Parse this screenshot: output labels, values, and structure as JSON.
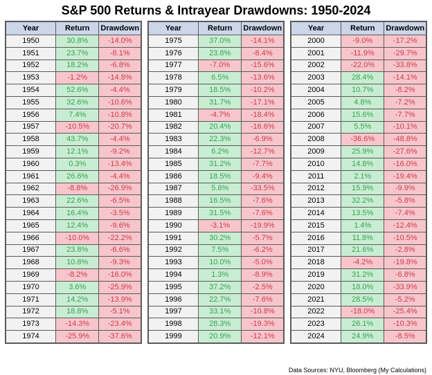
{
  "title": "S&P 500 Returns & Intrayear Drawdowns: 1950-2024",
  "columns": [
    "Year",
    "Return",
    "Drawdown"
  ],
  "footer": "Data Sources: NYU, Bloomberg (My Calculations)",
  "colors": {
    "header_bg": "#ccd5ea",
    "year_cell_bg": "#f2f2f2",
    "positive_bg": "#c9edd2",
    "positive_text": "#35a254",
    "negative_bg": "#f7c6cc",
    "negative_text": "#cc3b4a",
    "border": "#595959"
  },
  "tables": [
    {
      "name": "1950-1974",
      "rows": [
        {
          "year": "1950",
          "return": "30.8%",
          "drawdown": "-14.0%"
        },
        {
          "year": "1951",
          "return": "23.7%",
          "drawdown": "-8.1%"
        },
        {
          "year": "1952",
          "return": "18.2%",
          "drawdown": "-6.8%"
        },
        {
          "year": "1953",
          "return": "-1.2%",
          "drawdown": "-14.8%"
        },
        {
          "year": "1954",
          "return": "52.6%",
          "drawdown": "-4.4%"
        },
        {
          "year": "1955",
          "return": "32.6%",
          "drawdown": "-10.6%"
        },
        {
          "year": "1956",
          "return": "7.4%",
          "drawdown": "-10.8%"
        },
        {
          "year": "1957",
          "return": "-10.5%",
          "drawdown": "-20.7%"
        },
        {
          "year": "1958",
          "return": "43.7%",
          "drawdown": "-4.4%"
        },
        {
          "year": "1959",
          "return": "12.1%",
          "drawdown": "-9.2%"
        },
        {
          "year": "1960",
          "return": "0.3%",
          "drawdown": "-13.4%"
        },
        {
          "year": "1961",
          "return": "26.6%",
          "drawdown": "-4.4%"
        },
        {
          "year": "1962",
          "return": "-8.8%",
          "drawdown": "-26.9%"
        },
        {
          "year": "1963",
          "return": "22.6%",
          "drawdown": "-6.5%"
        },
        {
          "year": "1964",
          "return": "16.4%",
          "drawdown": "-3.5%"
        },
        {
          "year": "1965",
          "return": "12.4%",
          "drawdown": "-9.6%"
        },
        {
          "year": "1966",
          "return": "-10.0%",
          "drawdown": "-22.2%"
        },
        {
          "year": "1967",
          "return": "23.8%",
          "drawdown": "-6.6%"
        },
        {
          "year": "1968",
          "return": "10.8%",
          "drawdown": "-9.3%"
        },
        {
          "year": "1969",
          "return": "-8.2%",
          "drawdown": "-16.0%"
        },
        {
          "year": "1970",
          "return": "3.6%",
          "drawdown": "-25.9%"
        },
        {
          "year": "1971",
          "return": "14.2%",
          "drawdown": "-13.9%"
        },
        {
          "year": "1972",
          "return": "18.8%",
          "drawdown": "-5.1%"
        },
        {
          "year": "1973",
          "return": "-14.3%",
          "drawdown": "-23.4%"
        },
        {
          "year": "1974",
          "return": "-25.9%",
          "drawdown": "-37.6%"
        }
      ]
    },
    {
      "name": "1975-1999",
      "rows": [
        {
          "year": "1975",
          "return": "37.0%",
          "drawdown": "-14.1%"
        },
        {
          "year": "1976",
          "return": "23.8%",
          "drawdown": "-8.4%"
        },
        {
          "year": "1977",
          "return": "-7.0%",
          "drawdown": "-15.6%"
        },
        {
          "year": "1978",
          "return": "6.5%",
          "drawdown": "-13.6%"
        },
        {
          "year": "1979",
          "return": "18.5%",
          "drawdown": "-10.2%"
        },
        {
          "year": "1980",
          "return": "31.7%",
          "drawdown": "-17.1%"
        },
        {
          "year": "1981",
          "return": "-4.7%",
          "drawdown": "-18.4%"
        },
        {
          "year": "1982",
          "return": "20.4%",
          "drawdown": "-16.6%"
        },
        {
          "year": "1983",
          "return": "22.3%",
          "drawdown": "-6.9%"
        },
        {
          "year": "1984",
          "return": "6.2%",
          "drawdown": "-12.7%"
        },
        {
          "year": "1985",
          "return": "31.2%",
          "drawdown": "-7.7%"
        },
        {
          "year": "1986",
          "return": "18.5%",
          "drawdown": "-9.4%"
        },
        {
          "year": "1987",
          "return": "5.8%",
          "drawdown": "-33.5%"
        },
        {
          "year": "1988",
          "return": "16.5%",
          "drawdown": "-7.6%"
        },
        {
          "year": "1989",
          "return": "31.5%",
          "drawdown": "-7.6%"
        },
        {
          "year": "1990",
          "return": "-3.1%",
          "drawdown": "-19.9%"
        },
        {
          "year": "1991",
          "return": "30.2%",
          "drawdown": "-5.7%"
        },
        {
          "year": "1992",
          "return": "7.5%",
          "drawdown": "-6.2%"
        },
        {
          "year": "1993",
          "return": "10.0%",
          "drawdown": "-5.0%"
        },
        {
          "year": "1994",
          "return": "1.3%",
          "drawdown": "-8.9%"
        },
        {
          "year": "1995",
          "return": "37.2%",
          "drawdown": "-2.5%"
        },
        {
          "year": "1996",
          "return": "22.7%",
          "drawdown": "-7.6%"
        },
        {
          "year": "1997",
          "return": "33.1%",
          "drawdown": "-10.8%"
        },
        {
          "year": "1998",
          "return": "28.3%",
          "drawdown": "-19.3%"
        },
        {
          "year": "1999",
          "return": "20.9%",
          "drawdown": "-12.1%"
        }
      ]
    },
    {
      "name": "2000-2024",
      "rows": [
        {
          "year": "2000",
          "return": "-9.0%",
          "drawdown": "-17.2%"
        },
        {
          "year": "2001",
          "return": "-11.9%",
          "drawdown": "-29.7%"
        },
        {
          "year": "2002",
          "return": "-22.0%",
          "drawdown": "-33.8%"
        },
        {
          "year": "2003",
          "return": "28.4%",
          "drawdown": "-14.1%"
        },
        {
          "year": "2004",
          "return": "10.7%",
          "drawdown": "-8.2%"
        },
        {
          "year": "2005",
          "return": "4.8%",
          "drawdown": "-7.2%"
        },
        {
          "year": "2006",
          "return": "15.6%",
          "drawdown": "-7.7%"
        },
        {
          "year": "2007",
          "return": "5.5%",
          "drawdown": "-10.1%"
        },
        {
          "year": "2008",
          "return": "-36.6%",
          "drawdown": "-48.8%"
        },
        {
          "year": "2009",
          "return": "25.9%",
          "drawdown": "-27.6%"
        },
        {
          "year": "2010",
          "return": "14.8%",
          "drawdown": "-16.0%"
        },
        {
          "year": "2011",
          "return": "2.1%",
          "drawdown": "-19.4%"
        },
        {
          "year": "2012",
          "return": "15.9%",
          "drawdown": "-9.9%"
        },
        {
          "year": "2013",
          "return": "32.2%",
          "drawdown": "-5.8%"
        },
        {
          "year": "2014",
          "return": "13.5%",
          "drawdown": "-7.4%"
        },
        {
          "year": "2015",
          "return": "1.4%",
          "drawdown": "-12.4%"
        },
        {
          "year": "2016",
          "return": "11.8%",
          "drawdown": "-10.5%"
        },
        {
          "year": "2017",
          "return": "21.6%",
          "drawdown": "-2.8%"
        },
        {
          "year": "2018",
          "return": "-4.2%",
          "drawdown": "-19.8%"
        },
        {
          "year": "2019",
          "return": "31.2%",
          "drawdown": "-6.8%"
        },
        {
          "year": "2020",
          "return": "18.0%",
          "drawdown": "-33.9%"
        },
        {
          "year": "2021",
          "return": "28.5%",
          "drawdown": "-5.2%"
        },
        {
          "year": "2022",
          "return": "-18.0%",
          "drawdown": "-25.4%"
        },
        {
          "year": "2023",
          "return": "26.1%",
          "drawdown": "-10.3%"
        },
        {
          "year": "2024",
          "return": "24.9%",
          "drawdown": "-8.5%"
        }
      ]
    }
  ],
  "chart_data": {
    "type": "table",
    "title": "S&P 500 Returns & Intrayear Drawdowns: 1950-2024",
    "columns": [
      "Year",
      "Return",
      "Drawdown"
    ],
    "years": [
      1950,
      1951,
      1952,
      1953,
      1954,
      1955,
      1956,
      1957,
      1958,
      1959,
      1960,
      1961,
      1962,
      1963,
      1964,
      1965,
      1966,
      1967,
      1968,
      1969,
      1970,
      1971,
      1972,
      1973,
      1974,
      1975,
      1976,
      1977,
      1978,
      1979,
      1980,
      1981,
      1982,
      1983,
      1984,
      1985,
      1986,
      1987,
      1988,
      1989,
      1990,
      1991,
      1992,
      1993,
      1994,
      1995,
      1996,
      1997,
      1998,
      1999,
      2000,
      2001,
      2002,
      2003,
      2004,
      2005,
      2006,
      2007,
      2008,
      2009,
      2010,
      2011,
      2012,
      2013,
      2014,
      2015,
      2016,
      2017,
      2018,
      2019,
      2020,
      2021,
      2022,
      2023,
      2024
    ],
    "returns_pct": [
      30.8,
      23.7,
      18.2,
      -1.2,
      52.6,
      32.6,
      7.4,
      -10.5,
      43.7,
      12.1,
      0.3,
      26.6,
      -8.8,
      22.6,
      16.4,
      12.4,
      -10.0,
      23.8,
      10.8,
      -8.2,
      3.6,
      14.2,
      18.8,
      -14.3,
      -25.9,
      37.0,
      23.8,
      -7.0,
      6.5,
      18.5,
      31.7,
      -4.7,
      20.4,
      22.3,
      6.2,
      31.2,
      18.5,
      5.8,
      16.5,
      31.5,
      -3.1,
      30.2,
      7.5,
      10.0,
      1.3,
      37.2,
      22.7,
      33.1,
      28.3,
      20.9,
      -9.0,
      -11.9,
      -22.0,
      28.4,
      10.7,
      4.8,
      15.6,
      5.5,
      -36.6,
      25.9,
      14.8,
      2.1,
      15.9,
      32.2,
      13.5,
      1.4,
      11.8,
      21.6,
      -4.2,
      31.2,
      18.0,
      28.5,
      -18.0,
      26.1,
      24.9
    ],
    "drawdowns_pct": [
      -14.0,
      -8.1,
      -6.8,
      -14.8,
      -4.4,
      -10.6,
      -10.8,
      -20.7,
      -4.4,
      -9.2,
      -13.4,
      -4.4,
      -26.9,
      -6.5,
      -3.5,
      -9.6,
      -22.2,
      -6.6,
      -9.3,
      -16.0,
      -25.9,
      -13.9,
      -5.1,
      -23.4,
      -37.6,
      -14.1,
      -8.4,
      -15.6,
      -13.6,
      -10.2,
      -17.1,
      -18.4,
      -16.6,
      -6.9,
      -12.7,
      -7.7,
      -9.4,
      -33.5,
      -7.6,
      -7.6,
      -19.9,
      -5.7,
      -6.2,
      -5.0,
      -8.9,
      -2.5,
      -7.6,
      -10.8,
      -19.3,
      -12.1,
      -17.2,
      -29.7,
      -33.8,
      -14.1,
      -8.2,
      -7.2,
      -7.7,
      -10.1,
      -48.8,
      -27.6,
      -16.0,
      -19.4,
      -9.9,
      -5.8,
      -7.4,
      -12.4,
      -10.5,
      -2.8,
      -19.8,
      -6.8,
      -33.9,
      -5.2,
      -25.4,
      -10.3,
      -8.5
    ],
    "notes": "Return cells colored green when positive, pink when negative; all drawdown cells negative (pink).",
    "footer": "Data Sources: NYU, Bloomberg (My Calculations)"
  }
}
